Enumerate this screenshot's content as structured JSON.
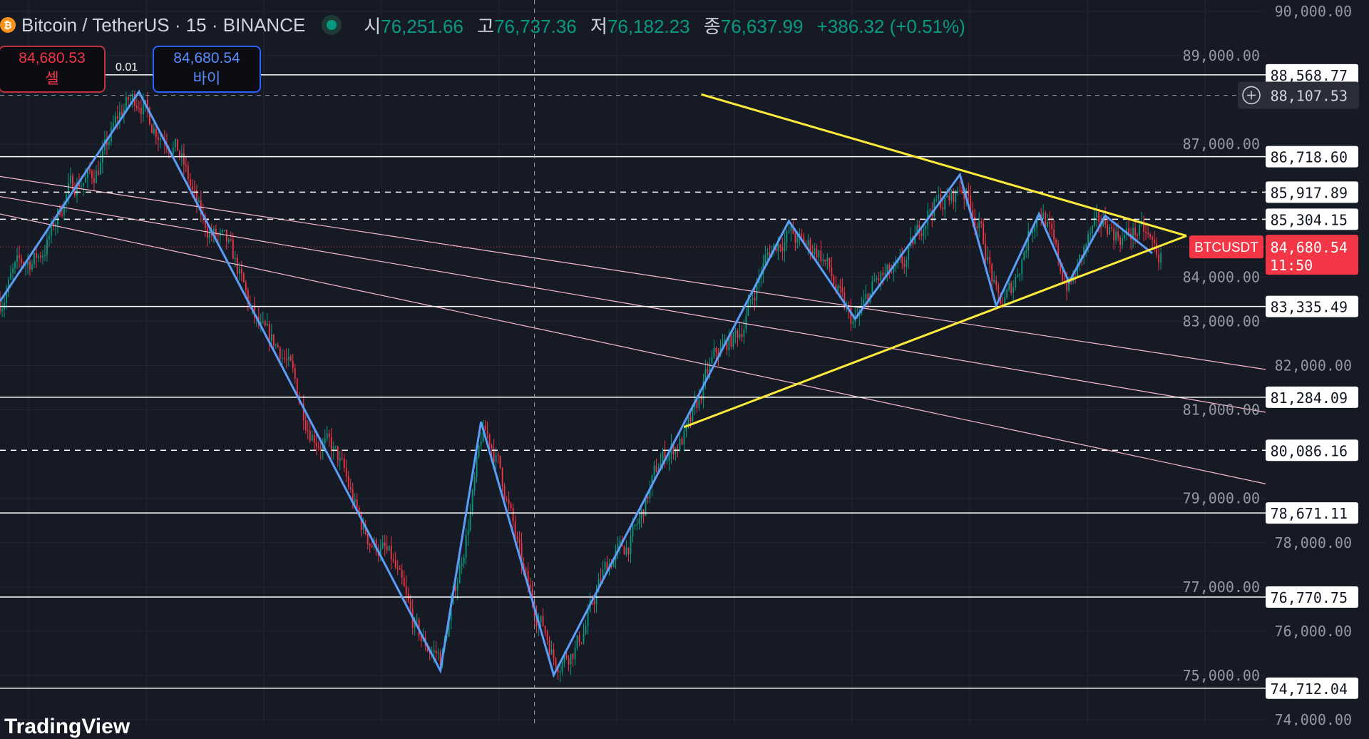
{
  "header": {
    "coin_icon": "bitcoin-icon",
    "symbol_title": "Bitcoin / TetherUS · 15 · BINANCE",
    "ohlc": [
      {
        "label": "시",
        "value": "76,251.66"
      },
      {
        "label": "고",
        "value": "76,737.36"
      },
      {
        "label": "저",
        "value": "76,182.23"
      },
      {
        "label": "종",
        "value": "76,637.99"
      }
    ],
    "change": "+386.32 (+0.51%)"
  },
  "trade": {
    "sell_price": "84,680.53",
    "sell_label": "셀",
    "buy_price": "84,680.54",
    "buy_label": "바이",
    "spread": "0.01"
  },
  "colors": {
    "background": "#161a25",
    "up": "#089981",
    "down": "#f23645",
    "zigzag": "#5b9cf6",
    "triangle": "#ffeb3b",
    "trendlines": "#f8bbd0",
    "levels": "#ffffff"
  },
  "branding": "TradingView",
  "chart_data": {
    "type": "candlestick",
    "ylim": [
      74000,
      90000
    ],
    "y_ticks": [
      "90,000.00",
      "89,000.00",
      "87,000.00",
      "84,000.00",
      "83,000.00",
      "82,000.00",
      "81,000.00",
      "79,000.00",
      "78,000.00",
      "77,000.00",
      "76,000.00",
      "75,000.00",
      "74,000.00"
    ],
    "y_tick_values": [
      90000,
      89000,
      87000,
      84000,
      83000,
      82000,
      81000,
      79000,
      78000,
      77000,
      76000,
      75000,
      74000
    ],
    "x_unit": "bar",
    "xlim": [
      0,
      592
    ],
    "zigzag": {
      "x": [
        0,
        65,
        206,
        225,
        259,
        319,
        369,
        400,
        449,
        466,
        486,
        500,
        517,
        539
      ],
      "y": [
        83452,
        88185,
        75108,
        80730,
        75010,
        80611,
        85266,
        83057,
        86312,
        83353,
        85424,
        83886,
        85385,
        84536
      ]
    },
    "triangle": {
      "upper": {
        "x": [
          328,
          555
        ],
        "y": [
          88126,
          84931
        ]
      },
      "lower": {
        "x": [
          320,
          555
        ],
        "y": [
          80611,
          84931
        ]
      }
    },
    "trendlines": [
      {
        "x": [
          0,
          592
        ],
        "y": [
          86272,
          81913
        ]
      },
      {
        "x": [
          0,
          592
        ],
        "y": [
          85818,
          80947
        ]
      },
      {
        "x": [
          0,
          592
        ],
        "y": [
          85424,
          79329
        ]
      }
    ],
    "levels": [
      {
        "value": 88568.77,
        "label": "88,568.77",
        "style": "solid"
      },
      {
        "value": 86718.6,
        "label": "86,718.60",
        "style": "solid"
      },
      {
        "value": 85917.89,
        "label": "85,917.89",
        "style": "dashed"
      },
      {
        "value": 85304.15,
        "label": "85,304.15",
        "style": "dashed"
      },
      {
        "value": 83335.49,
        "label": "83,335.49",
        "style": "solid"
      },
      {
        "value": 81284.09,
        "label": "81,284.09",
        "style": "solid"
      },
      {
        "value": 80086.16,
        "label": "80,086.16",
        "style": "dashed"
      },
      {
        "value": 78671.11,
        "label": "78,671.11",
        "style": "solid"
      },
      {
        "value": 76770.75,
        "label": "76,770.75",
        "style": "solid"
      },
      {
        "value": 74712.04,
        "label": "74,712.04",
        "style": "solid"
      }
    ],
    "crosshair": {
      "value": 88107.53,
      "label": "88,107.53",
      "bar": 250
    },
    "last_price": {
      "value": 84680.54,
      "label": "84,680.54",
      "countdown": "11:50",
      "symbol": "BTCUSDT"
    }
  }
}
